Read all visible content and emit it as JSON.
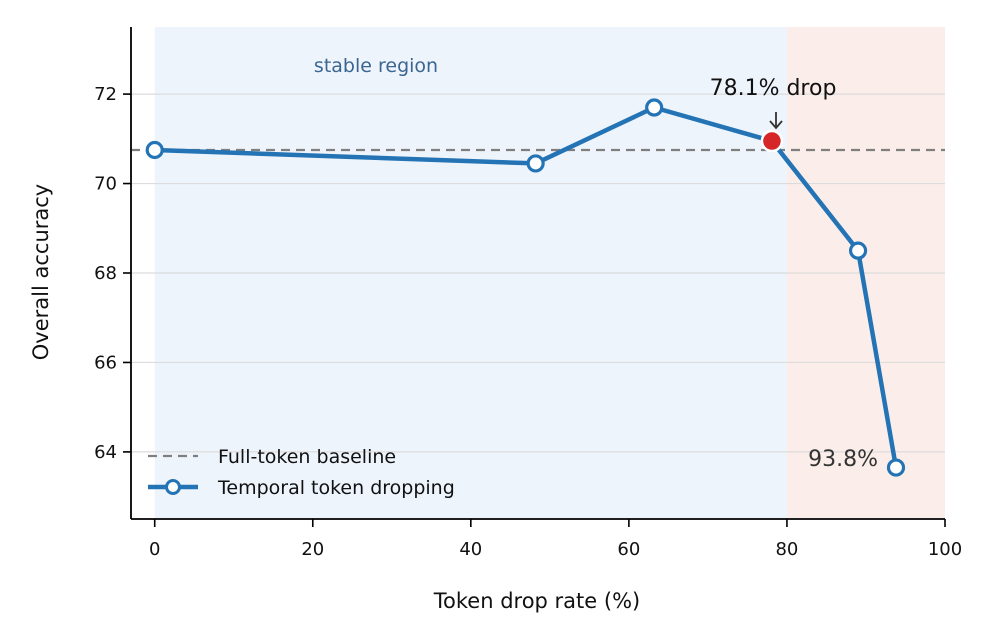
{
  "chart_data": {
    "type": "line",
    "xlabel": "Token drop rate (%)",
    "ylabel": "Overall accuracy",
    "xlim": [
      -3,
      100
    ],
    "ylim": [
      62.5,
      73.5
    ],
    "x_ticks": [
      0,
      20,
      40,
      60,
      80,
      100
    ],
    "y_ticks": [
      64,
      66,
      68,
      70,
      72
    ],
    "grid": "horizontal",
    "legend_position": "lower-left",
    "series": [
      {
        "name": "Temporal token dropping",
        "x": [
          0,
          48.2,
          63.2,
          78.1,
          89.0,
          93.8
        ],
        "y": [
          70.75,
          70.45,
          71.7,
          70.95,
          68.5,
          63.65
        ],
        "color": "#2474b5"
      }
    ],
    "baseline": {
      "name": "Full-token baseline",
      "y": 70.75,
      "color": "#7f7f7f"
    },
    "highlight_point": {
      "x": 78.1,
      "y": 70.95,
      "color": "#d62728"
    },
    "regions": [
      {
        "label": "stable region",
        "x": [
          0,
          80
        ],
        "color": "#eef4fc",
        "label_color": "#3a6690"
      },
      {
        "label": "",
        "x": [
          80,
          100
        ],
        "color": "#fbeeea"
      }
    ],
    "annotations": [
      {
        "text": "78.1% drop",
        "x": 78.1,
        "y": 70.95
      },
      {
        "text": "93.8%",
        "x": 93.8,
        "y": 63.65
      }
    ]
  }
}
